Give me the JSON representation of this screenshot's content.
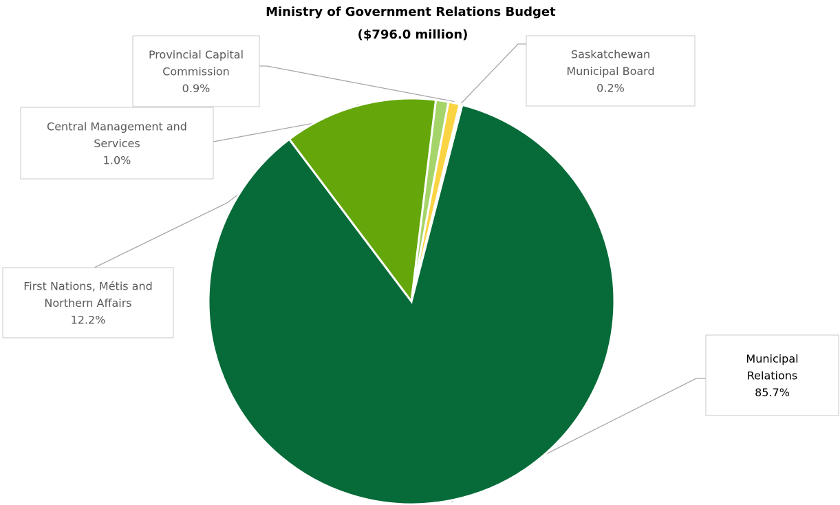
{
  "chart_data": {
    "type": "pie",
    "title_lines": [
      "Ministry of Government Relations Budget",
      "($796.0 million)"
    ],
    "slices": [
      {
        "name_lines": [
          "Municipal",
          "Relations"
        ],
        "value": 85.7,
        "label": "85.7%",
        "color": "#066b38"
      },
      {
        "name_lines": [
          "First Nations, Métis and",
          "Northern Affairs"
        ],
        "value": 12.2,
        "label": "12.2%",
        "color": "#65a70b"
      },
      {
        "name_lines": [
          "Central Management and",
          "Services"
        ],
        "value": 1.0,
        "label": "1.0%",
        "color": "#a5d46a"
      },
      {
        "name_lines": [
          "Provincial Capital",
          "Commission"
        ],
        "value": 0.9,
        "label": "0.9%",
        "color": "#fbd443"
      },
      {
        "name_lines": [
          "Saskatchewan",
          "Municipal Board"
        ],
        "value": 0.2,
        "label": "0.2%",
        "color": "#ffffff"
      }
    ]
  }
}
